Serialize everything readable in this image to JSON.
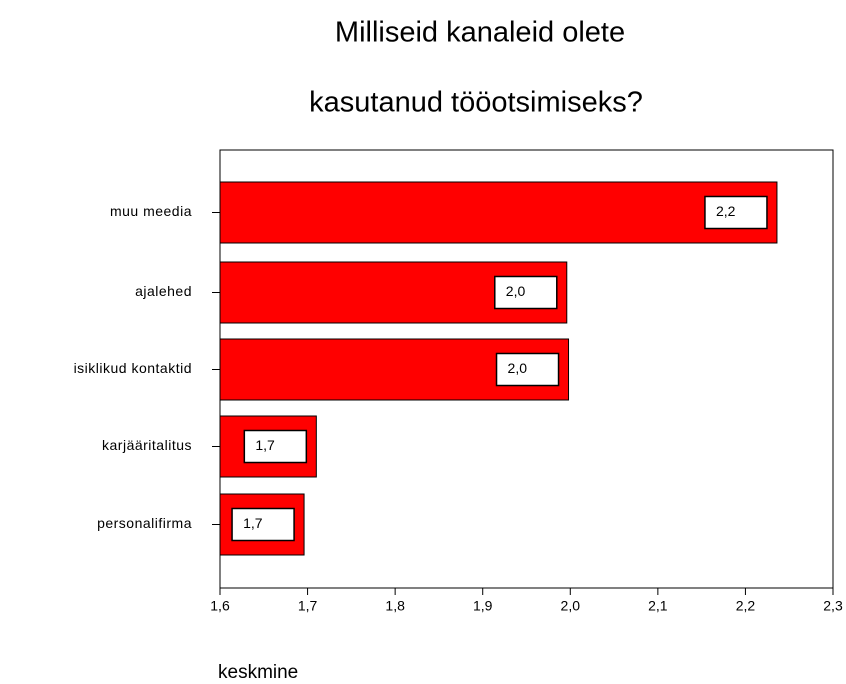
{
  "chart_data": {
    "type": "bar",
    "orientation": "horizontal",
    "title": [
      "Milliseid kanaleid olete",
      "kasutanud tööotsimiseks?"
    ],
    "xlabel": "keskmine",
    "categories": [
      "muu meedia",
      "ajalehed",
      "isiklikud kontaktid",
      "karjääritalitus",
      "personalifirma"
    ],
    "values": [
      2.236,
      1.996,
      1.998,
      1.71,
      1.696
    ],
    "value_labels": [
      "2,2",
      "2,0",
      "2,0",
      "1,7",
      "1,7"
    ],
    "color": "#ff0000",
    "xlim": [
      1.6,
      2.3
    ],
    "xticks": [
      {
        "value": 1.6,
        "label": "1,6"
      },
      {
        "value": 1.7,
        "label": "1,7"
      },
      {
        "value": 1.8,
        "label": "1,8"
      },
      {
        "value": 1.9,
        "label": "1,9"
      },
      {
        "value": 2.0,
        "label": "2,0"
      },
      {
        "value": 2.1,
        "label": "2,1"
      },
      {
        "value": 2.2,
        "label": "2,2"
      },
      {
        "value": 2.3,
        "label": "2,3"
      }
    ]
  }
}
